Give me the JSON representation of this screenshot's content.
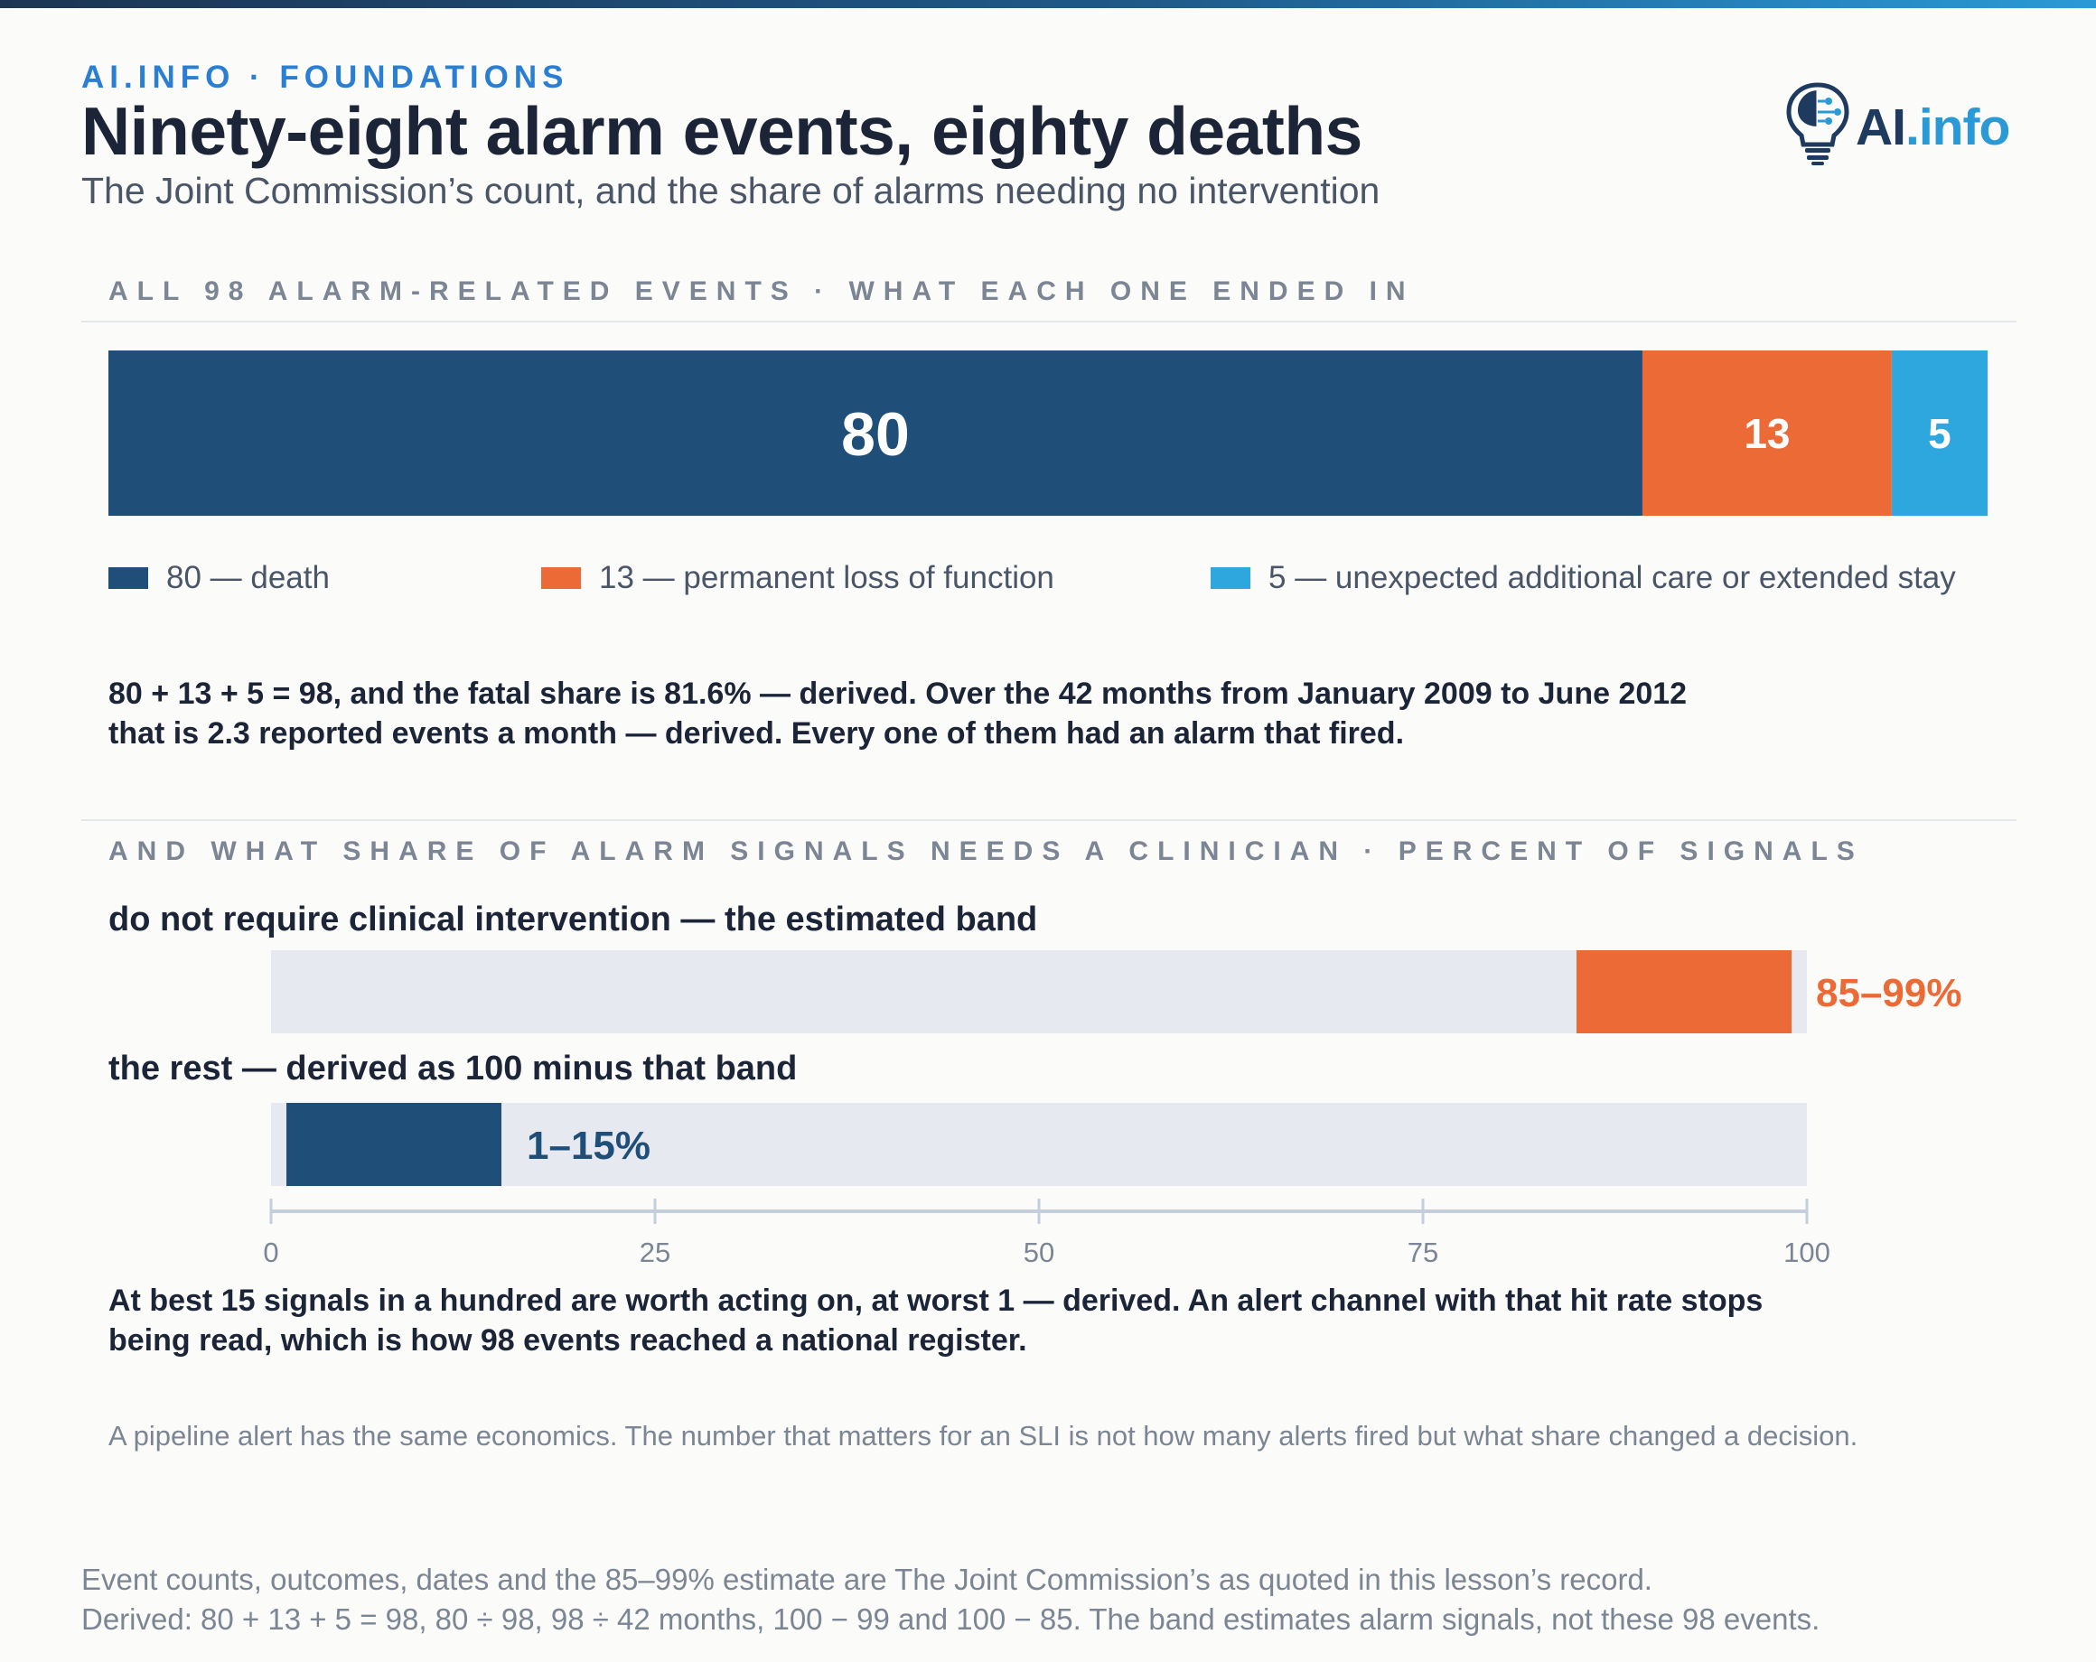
{
  "header": {
    "kicker": "AI.INFO · FOUNDATIONS",
    "title": "Ninety-eight alarm events, eighty deaths",
    "subtitle": "The Joint Commission’s count, and the share of alarms needing no intervention",
    "logo_text_main": "AI",
    "logo_text_accent": ".info"
  },
  "section1": {
    "label": "ALL 98 ALARM-RELATED EVENTS · WHAT EACH ONE ENDED IN",
    "legend": [
      "80 — death",
      "13 — permanent loss of function",
      "5 — unexpected additional care or extended stay"
    ],
    "paragraph": "80 + 13 + 5 = 98, and the fatal share is 81.6% — derived. Over the 42 months from January 2009 to June 2012 that is 2.3 reported events a month — derived. Every one of them had an alarm that fired."
  },
  "section2": {
    "label": "AND WHAT SHARE OF ALARM SIGNALS NEEDS A CLINICIAN · PERCENT OF SIGNALS",
    "paragraph": "At best 15 signals in a hundred are worth acting on, at worst 1 — derived. An alert channel with that hit rate stops being read, which is how 98 events reached a national register.",
    "note": "A pipeline alert has the same economics. The number that matters for an SLI is not how many alerts fired but what share changed a decision."
  },
  "footer": {
    "source_line1": "Event counts, outcomes, dates and the 85–99% estimate are The Joint Commission’s as quoted in this lesson’s record.",
    "source_line2": "Derived: 80 + 13 + 5 = 98, 80 ÷ 98, 98 ÷ 42 months, 100 − 99 and 100 − 85. The band estimates alarm signals, not these 98 events."
  },
  "colors": {
    "death": "#1f4e79",
    "permanent": "#ec6a35",
    "additional": "#2ea6de",
    "track": "#e6e9ef",
    "axis": "#c5cfdc"
  },
  "chart_data": [
    {
      "type": "bar",
      "stacked": true,
      "orientation": "horizontal",
      "total": 98,
      "series": [
        {
          "name": "death",
          "value": 80,
          "label": "80"
        },
        {
          "name": "permanent loss of function",
          "value": 13,
          "label": "13"
        },
        {
          "name": "unexpected additional care or extended stay",
          "value": 5,
          "label": "5"
        }
      ]
    },
    {
      "type": "bar",
      "orientation": "horizontal",
      "range_bars": true,
      "xlim": [
        0,
        100
      ],
      "ticks": [
        0,
        25,
        50,
        75,
        100
      ],
      "bars": [
        {
          "label": "do not require clinical intervention — the estimated band",
          "low": 85,
          "high": 99,
          "value_label": "85–99%"
        },
        {
          "label": "the rest — derived as 100 minus that band",
          "low": 1,
          "high": 15,
          "value_label": "1–15%"
        }
      ]
    }
  ]
}
